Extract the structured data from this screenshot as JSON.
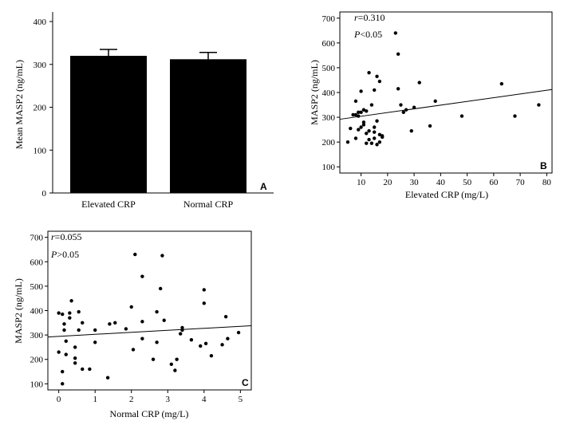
{
  "chart_data": [
    {
      "panel": "A",
      "type": "bar",
      "categories": [
        "Elevated CRP",
        "Normal CRP"
      ],
      "values": [
        320,
        312
      ],
      "error_upper": [
        335,
        328
      ],
      "ylabel": "Mean MASP2 (ng/mL)",
      "ylim": [
        0,
        400
      ],
      "yticks": [
        0,
        100,
        200,
        300,
        400
      ],
      "grid": false,
      "bar_color": "#000000"
    },
    {
      "panel": "B",
      "type": "scatter",
      "xlabel": "Elevated CRP (mg/L)",
      "ylabel": "MASP2 (ng/mL)",
      "xlim": [
        2,
        82
      ],
      "ylim": [
        75,
        725
      ],
      "xticks": [
        10,
        20,
        30,
        40,
        50,
        60,
        70,
        80
      ],
      "yticks": [
        100,
        200,
        300,
        400,
        500,
        600,
        700
      ],
      "stat_r_prefix": "r",
      "stat_r_value": "=0.310",
      "stat_p_prefix": "P",
      "stat_p_value": "<0.05",
      "fit_line": {
        "x": [
          2,
          82
        ],
        "y": [
          292,
          412
        ]
      },
      "points": [
        [
          5,
          200
        ],
        [
          6,
          255
        ],
        [
          7,
          310
        ],
        [
          8,
          215
        ],
        [
          8,
          310
        ],
        [
          8,
          365
        ],
        [
          9,
          320
        ],
        [
          9,
          305
        ],
        [
          9,
          250
        ],
        [
          10,
          405
        ],
        [
          10,
          320
        ],
        [
          10,
          260
        ],
        [
          11,
          270
        ],
        [
          11,
          330
        ],
        [
          11,
          280
        ],
        [
          12,
          325
        ],
        [
          12,
          235
        ],
        [
          12,
          195
        ],
        [
          13,
          480
        ],
        [
          13,
          210
        ],
        [
          13,
          245
        ],
        [
          14,
          195
        ],
        [
          14,
          350
        ],
        [
          15,
          260
        ],
        [
          15,
          240
        ],
        [
          15,
          410
        ],
        [
          15,
          215
        ],
        [
          16,
          465
        ],
        [
          16,
          285
        ],
        [
          16,
          190
        ],
        [
          17,
          200
        ],
        [
          17,
          230
        ],
        [
          17,
          445
        ],
        [
          18,
          225
        ],
        [
          18,
          220
        ],
        [
          23,
          640
        ],
        [
          24,
          555
        ],
        [
          24,
          415
        ],
        [
          25,
          350
        ],
        [
          26,
          320
        ],
        [
          27,
          330
        ],
        [
          29,
          245
        ],
        [
          30,
          340
        ],
        [
          32,
          440
        ],
        [
          36,
          265
        ],
        [
          38,
          365
        ],
        [
          48,
          305
        ],
        [
          63,
          435
        ],
        [
          68,
          305
        ],
        [
          77,
          350
        ]
      ]
    },
    {
      "panel": "C",
      "type": "scatter",
      "xlabel": "Normal CRP (mg/L)",
      "ylabel": "MASP2 (ng/mL)",
      "xlim": [
        -0.3,
        5.3
      ],
      "ylim": [
        75,
        725
      ],
      "xticks": [
        0,
        1,
        2,
        3,
        4,
        5
      ],
      "yticks": [
        100,
        200,
        300,
        400,
        500,
        600,
        700
      ],
      "stat_r_prefix": "r",
      "stat_r_value": "=0.055",
      "stat_p_prefix": "P",
      "stat_p_value": ">0.05",
      "fit_line": {
        "x": [
          -0.3,
          5.3
        ],
        "y": [
          292,
          338
        ]
      },
      "points": [
        [
          0,
          390
        ],
        [
          0,
          230
        ],
        [
          0.1,
          385
        ],
        [
          0.1,
          150
        ],
        [
          0.1,
          100
        ],
        [
          0.15,
          320
        ],
        [
          0.15,
          345
        ],
        [
          0.2,
          275
        ],
        [
          0.2,
          220
        ],
        [
          0.3,
          390
        ],
        [
          0.3,
          370
        ],
        [
          0.35,
          440
        ],
        [
          0.45,
          250
        ],
        [
          0.45,
          205
        ],
        [
          0.45,
          185
        ],
        [
          0.55,
          395
        ],
        [
          0.55,
          320
        ],
        [
          0.65,
          350
        ],
        [
          0.65,
          160
        ],
        [
          0.85,
          160
        ],
        [
          1,
          320
        ],
        [
          1,
          270
        ],
        [
          1.35,
          125
        ],
        [
          1.4,
          345
        ],
        [
          1.55,
          350
        ],
        [
          1.85,
          325
        ],
        [
          2,
          415
        ],
        [
          2.05,
          240
        ],
        [
          2.1,
          630
        ],
        [
          2.3,
          540
        ],
        [
          2.3,
          355
        ],
        [
          2.3,
          285
        ],
        [
          2.6,
          200
        ],
        [
          2.7,
          270
        ],
        [
          2.7,
          395
        ],
        [
          2.8,
          490
        ],
        [
          2.85,
          625
        ],
        [
          2.9,
          360
        ],
        [
          3.1,
          180
        ],
        [
          3.2,
          155
        ],
        [
          3.25,
          200
        ],
        [
          3.35,
          305
        ],
        [
          3.4,
          320
        ],
        [
          3.4,
          330
        ],
        [
          3.65,
          280
        ],
        [
          3.9,
          255
        ],
        [
          4,
          485
        ],
        [
          4,
          430
        ],
        [
          4.05,
          265
        ],
        [
          4.2,
          215
        ],
        [
          4.5,
          260
        ],
        [
          4.6,
          375
        ],
        [
          4.65,
          285
        ],
        [
          4.95,
          310
        ]
      ]
    }
  ],
  "panel_labels": [
    "A",
    "B",
    "C"
  ]
}
